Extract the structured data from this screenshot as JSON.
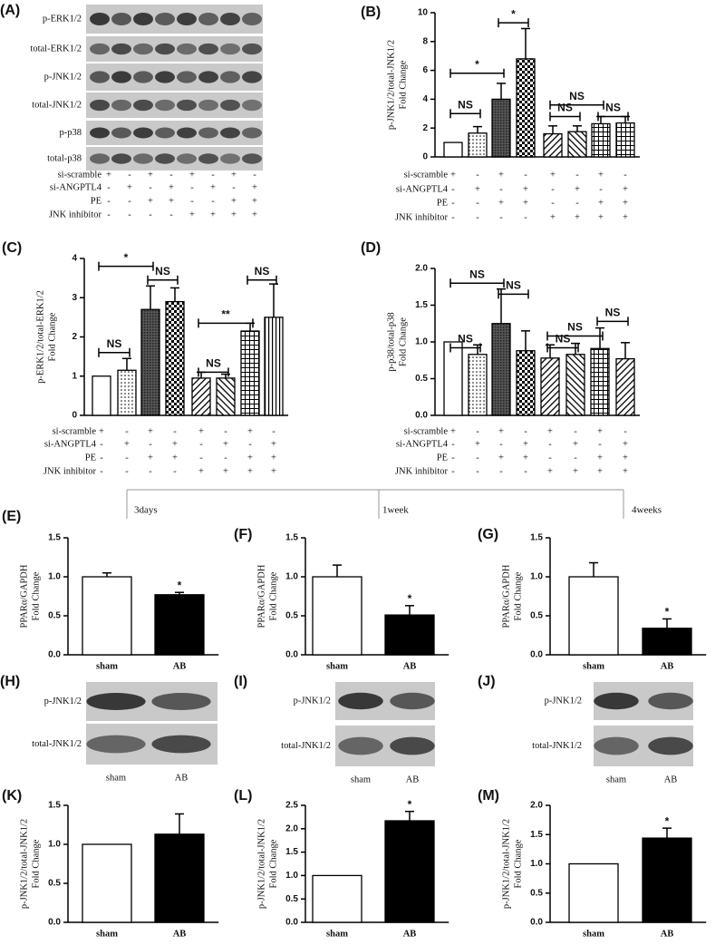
{
  "chart_data": [
    {
      "type": "bar",
      "panel": "(B)",
      "ylabel": [
        "p-JNK1/2/total-JNK1/2",
        "Fold Change"
      ],
      "values": [
        1,
        1.65,
        4.0,
        6.8,
        1.6,
        1.75,
        2.3,
        2.35
      ],
      "errors": [
        null,
        0.45,
        1.1,
        2.1,
        0.55,
        0.4,
        0.5,
        0.45
      ],
      "fills": [
        "white",
        "dots",
        "dense",
        "checker",
        "diagonal",
        "diagonal2",
        "grid",
        "grid"
      ],
      "ylim": [
        0,
        10
      ],
      "yticks": [
        0,
        2,
        4,
        6,
        8,
        10
      ],
      "annotations": [
        "NS",
        "*",
        "*",
        "NS",
        "NS",
        "NS"
      ],
      "conditions": [
        {
          "label": "si-scramble",
          "signs": [
            "+",
            "-",
            "+",
            "-",
            "+",
            "-",
            "+",
            "-"
          ]
        },
        {
          "label": "si-ANGPTL4",
          "signs": [
            "-",
            "+",
            "-",
            "+",
            "-",
            "+",
            "-",
            "+"
          ]
        },
        {
          "label": "PE",
          "signs": [
            "-",
            "-",
            "+",
            "+",
            "-",
            "-",
            "+",
            "+"
          ]
        },
        {
          "label": "JNK inhibitor",
          "signs": [
            "-",
            "-",
            "-",
            "-",
            "+",
            "+",
            "+",
            "+"
          ]
        }
      ]
    },
    {
      "type": "bar",
      "panel": "(C)",
      "ylabel": [
        "p-ERK1/2/total-ERK1/2",
        "Fold Change"
      ],
      "values": [
        1,
        1.15,
        2.7,
        2.9,
        0.95,
        0.95,
        2.15,
        2.5
      ],
      "errors": [
        null,
        0.3,
        0.6,
        0.35,
        0.15,
        0.1,
        0.2,
        0.85
      ],
      "fills": [
        "white",
        "dots",
        "dense",
        "checker",
        "diagonal",
        "diagonal2",
        "grid",
        "vertical"
      ],
      "ylim": [
        0,
        4
      ],
      "yticks": [
        0,
        1,
        2,
        3,
        4
      ],
      "annotations": [
        "*",
        "NS",
        "NS",
        "**",
        "NS",
        "NS"
      ],
      "conditions": [
        {
          "label": "si-scramble",
          "signs": [
            "+",
            "-",
            "+",
            "-",
            "+",
            "-",
            "+",
            "-"
          ]
        },
        {
          "label": "si-ANGPTL4",
          "signs": [
            "-",
            "+",
            "-",
            "+",
            "-",
            "+",
            "-",
            "+"
          ]
        },
        {
          "label": "PE",
          "signs": [
            "-",
            "-",
            "+",
            "+",
            "-",
            "-",
            "+",
            "+"
          ]
        },
        {
          "label": "JNK inhibitor",
          "signs": [
            "-",
            "-",
            "-",
            "-",
            "+",
            "+",
            "+",
            "+"
          ]
        }
      ]
    },
    {
      "type": "bar",
      "panel": "(D)",
      "ylabel": [
        "p-p38/total-p38",
        "Fold Change"
      ],
      "values": [
        1.0,
        0.83,
        1.25,
        0.88,
        0.78,
        0.83,
        0.91,
        0.77
      ],
      "errors": [
        null,
        0.13,
        0.47,
        0.27,
        0.18,
        0.15,
        0.28,
        0.22
      ],
      "fills": [
        "white",
        "dots",
        "dense",
        "checker",
        "diagonal",
        "diagonal2",
        "grid",
        "diagonal"
      ],
      "ylim": [
        0,
        2
      ],
      "yticks": [
        {
          "value": 0,
          "label": "0.0"
        },
        {
          "value": 0.5,
          "label": "0.5"
        },
        {
          "value": 1,
          "label": "1.0"
        },
        {
          "value": 1.5,
          "label": "1.5"
        },
        {
          "value": 2,
          "label": "2.0"
        }
      ],
      "annotations": [
        "NS",
        "NS",
        "NS",
        "NS",
        "NS",
        "NS"
      ],
      "conditions": [
        {
          "label": "si-scramble",
          "signs": [
            "+",
            "-",
            "+",
            "-",
            "+",
            "-",
            "+",
            "-"
          ]
        },
        {
          "label": "si-ANGPTL4",
          "signs": [
            "-",
            "+",
            "-",
            "+",
            "-",
            "+",
            "-",
            "+"
          ]
        },
        {
          "label": "PE",
          "signs": [
            "-",
            "-",
            "+",
            "+",
            "-",
            "-",
            "+",
            "+"
          ]
        },
        {
          "label": "JNK inhibitor",
          "signs": [
            "-",
            "-",
            "-",
            "-",
            "+",
            "+",
            "+",
            "+"
          ]
        }
      ]
    },
    {
      "type": "bar",
      "panel": "(E)",
      "ylabel": [
        "PPARα/GAPDH",
        "Fold Change"
      ],
      "categories": [
        "sham",
        "AB"
      ],
      "values": [
        1.0,
        0.77
      ],
      "errors": [
        0.05,
        0.03
      ],
      "fills": [
        "white",
        "black"
      ],
      "ylim": [
        0,
        1.5
      ],
      "yticks": [
        {
          "value": 0,
          "label": "0.0"
        },
        {
          "value": 0.5,
          "label": "0.5"
        },
        {
          "value": 1,
          "label": "1.0"
        },
        {
          "value": 1.5,
          "label": "1.5"
        }
      ],
      "annotations": [
        "*"
      ]
    },
    {
      "type": "bar",
      "panel": "(F)",
      "ylabel": [
        "PPARα/GAPDH",
        "Fold Change"
      ],
      "categories": [
        "sham",
        "AB"
      ],
      "values": [
        1.0,
        0.51
      ],
      "errors": [
        0.15,
        0.12
      ],
      "fills": [
        "white",
        "black"
      ],
      "ylim": [
        0,
        1.5
      ],
      "yticks": [
        {
          "value": 0,
          "label": "0.0"
        },
        {
          "value": 0.5,
          "label": "0.5"
        },
        {
          "value": 1,
          "label": "1.0"
        },
        {
          "value": 1.5,
          "label": "1.5"
        }
      ],
      "annotations": [
        "*"
      ]
    },
    {
      "type": "bar",
      "panel": "(G)",
      "ylabel": [
        "PPARα/GAPDH",
        "Fold Change"
      ],
      "categories": [
        "sham",
        "AB"
      ],
      "values": [
        1.0,
        0.34
      ],
      "errors": [
        0.18,
        0.12
      ],
      "fills": [
        "white",
        "black"
      ],
      "ylim": [
        0,
        1.5
      ],
      "yticks": [
        {
          "value": 0,
          "label": "0.0"
        },
        {
          "value": 0.5,
          "label": "0.5"
        },
        {
          "value": 1,
          "label": "1.0"
        },
        {
          "value": 1.5,
          "label": "1.5"
        }
      ],
      "annotations": [
        "*"
      ]
    },
    {
      "type": "bar",
      "panel": "(K)",
      "ylabel": [
        "p-JNK1/2/total-JNK1/2",
        "Fold Change"
      ],
      "categories": [
        "sham",
        "AB"
      ],
      "values": [
        1.0,
        1.13
      ],
      "errors": [
        null,
        0.26
      ],
      "fills": [
        "white",
        "black"
      ],
      "ylim": [
        0,
        1.5
      ],
      "yticks": [
        {
          "value": 0,
          "label": "0.0"
        },
        {
          "value": 0.5,
          "label": "0.5"
        },
        {
          "value": 1,
          "label": "1.0"
        },
        {
          "value": 1.5,
          "label": "1.5"
        }
      ],
      "annotations": []
    },
    {
      "type": "bar",
      "panel": "(L)",
      "ylabel": [
        "p-JNK1/2/total-JNK1/2",
        "Fold Change"
      ],
      "categories": [
        "sham",
        "AB"
      ],
      "values": [
        1.0,
        2.17
      ],
      "errors": [
        null,
        0.2
      ],
      "fills": [
        "white",
        "black"
      ],
      "ylim": [
        0,
        2.5
      ],
      "yticks": [
        {
          "value": 0,
          "label": "0.0"
        },
        {
          "value": 0.5,
          "label": "0.5"
        },
        {
          "value": 1,
          "label": "1.0"
        },
        {
          "value": 1.5,
          "label": "1.5"
        },
        {
          "value": 2,
          "label": "2.0"
        },
        {
          "value": 2.5,
          "label": "2.5"
        }
      ],
      "annotations": [
        "*"
      ]
    },
    {
      "type": "bar",
      "panel": "(M)",
      "ylabel": [
        "p-JNK1/2/total-JNK1/2",
        "Fold Change"
      ],
      "categories": [
        "sham",
        "AB"
      ],
      "values": [
        1.0,
        1.44
      ],
      "errors": [
        null,
        0.17
      ],
      "fills": [
        "white",
        "black"
      ],
      "ylim": [
        0,
        2
      ],
      "yticks": [
        {
          "value": 0,
          "label": "0.0"
        },
        {
          "value": 0.5,
          "label": "0.5"
        },
        {
          "value": 1,
          "label": "1.0"
        },
        {
          "value": 1.5,
          "label": "1.5"
        },
        {
          "value": 2,
          "label": "2.0"
        }
      ],
      "annotations": [
        "*"
      ]
    }
  ],
  "blots": [
    {
      "panel": "(A)",
      "labels": [
        "p-ERK1/2",
        "total-ERK1/2",
        "p-JNK1/2",
        "total-JNK1/2",
        "p-p38",
        "total-p38"
      ],
      "conditions": [
        {
          "label": "si-scramble",
          "signs": [
            "+",
            "-",
            "+",
            "-",
            "+",
            "-",
            "+",
            "-"
          ]
        },
        {
          "label": "si-ANGPTL4",
          "signs": [
            "-",
            "+",
            "-",
            "+",
            "-",
            "+",
            "-",
            "+"
          ]
        },
        {
          "label": "PE",
          "signs": [
            "-",
            "-",
            "+",
            "+",
            "-",
            "-",
            "+",
            "+"
          ]
        },
        {
          "label": "JNK inhibitor",
          "signs": [
            "-",
            "-",
            "-",
            "-",
            "+",
            "+",
            "+",
            "+"
          ]
        }
      ]
    },
    {
      "panel": "(H)",
      "labels": [
        "p-JNK1/2",
        "total-JNK1/2"
      ],
      "lanes": [
        "sham",
        "AB"
      ]
    },
    {
      "panel": "(I)",
      "labels": [
        "p-JNK1/2",
        "total-JNK1/2"
      ],
      "lanes": [
        "sham",
        "AB"
      ]
    },
    {
      "panel": "(J)",
      "labels": [
        "p-JNK1/2",
        "total-JNK1/2"
      ],
      "lanes": [
        "sham",
        "AB"
      ]
    }
  ],
  "timeline": [
    "3days",
    "1week",
    "4weeks"
  ]
}
